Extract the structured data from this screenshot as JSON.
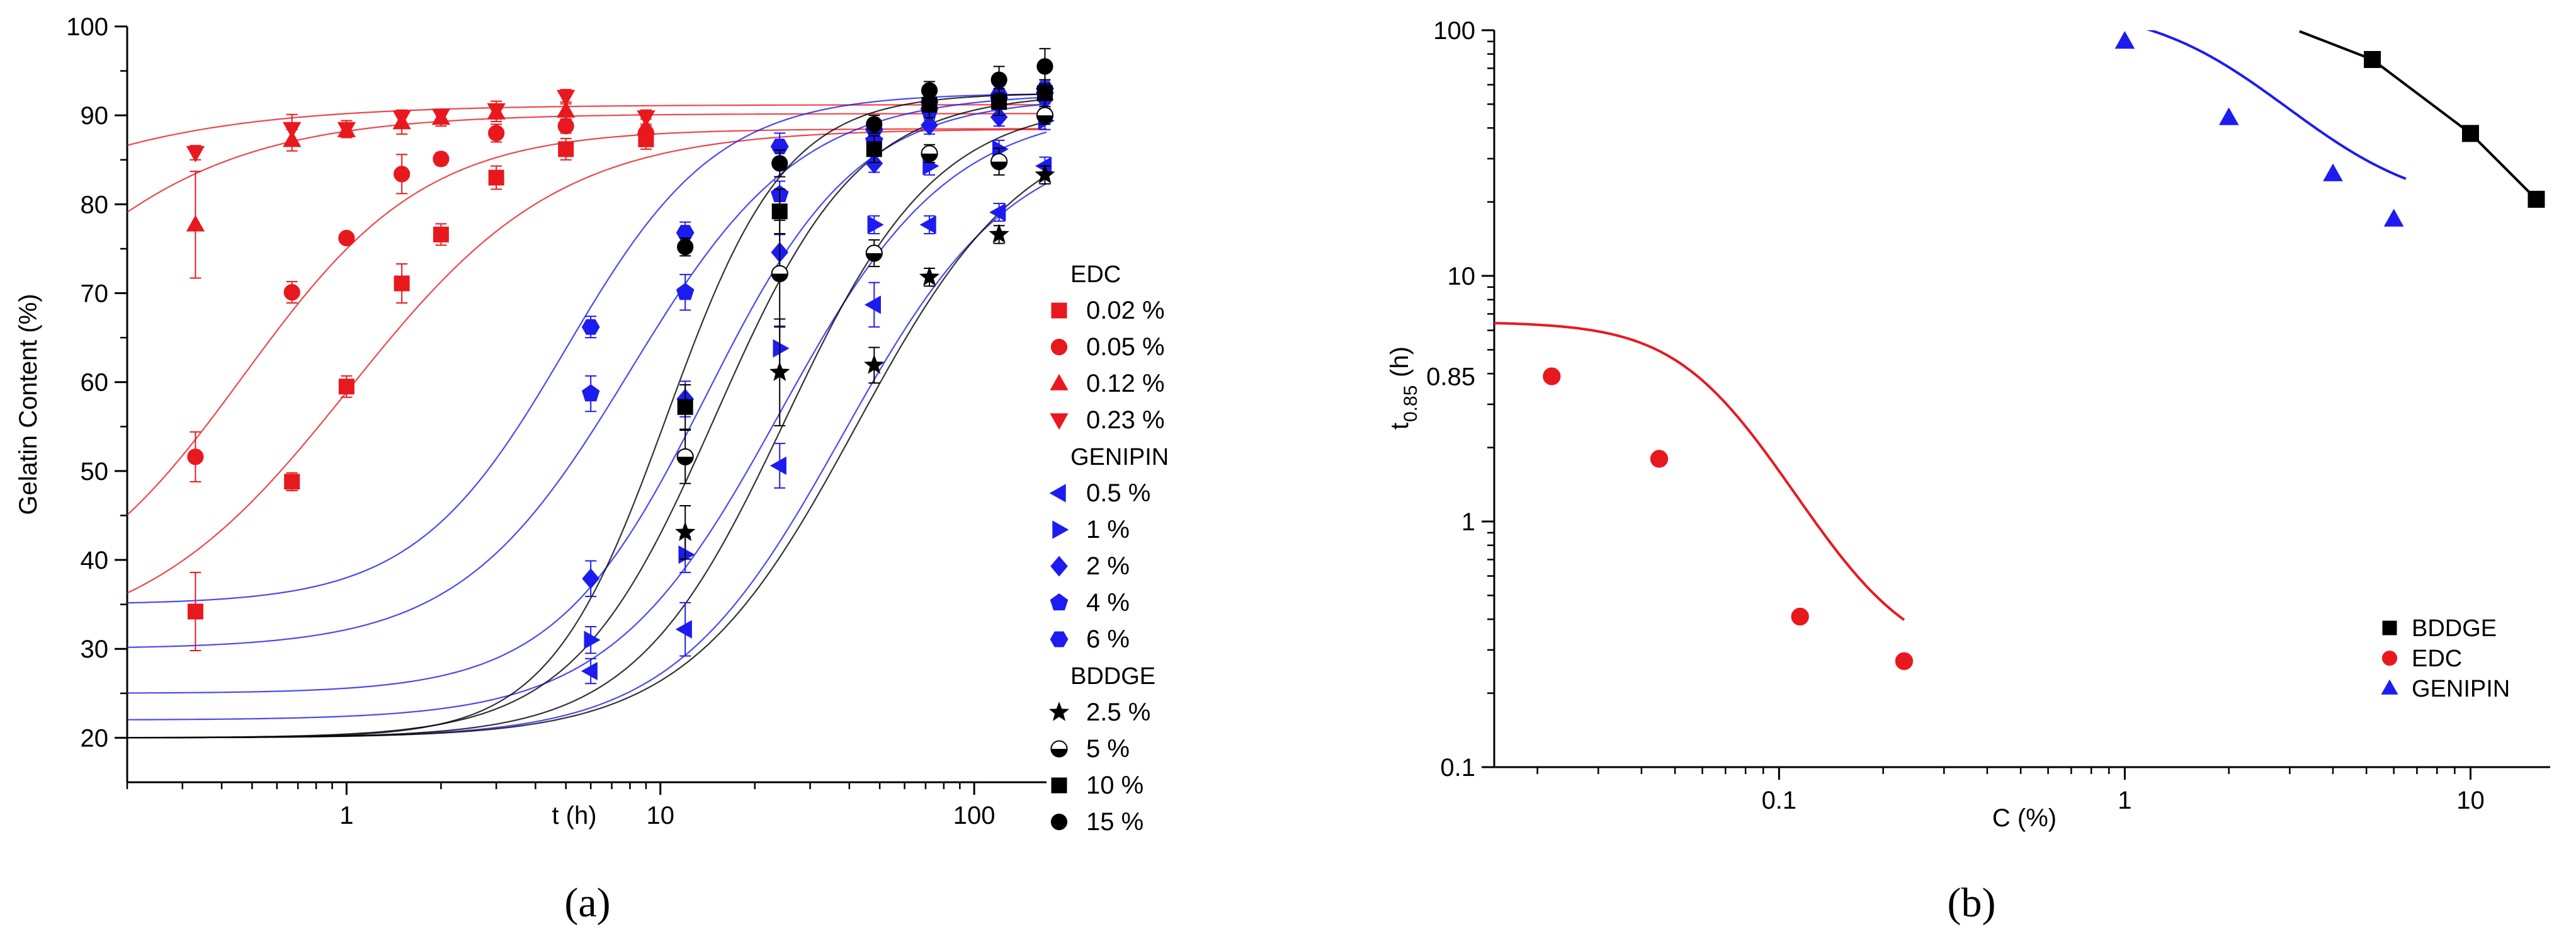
{
  "chart_data": [
    {
      "id": "a",
      "panel_label": "(a)",
      "type": "scatter",
      "xscale": "log",
      "xlabel": "t (h)",
      "ylabel": "Gelatin Content (%)",
      "xlim": [
        0.2,
        170
      ],
      "ylim": [
        15,
        100
      ],
      "xticks": [
        1,
        10,
        100
      ],
      "xtick_labels": [
        "1",
        "10",
        "100"
      ],
      "yticks": [
        20,
        30,
        40,
        50,
        60,
        70,
        80,
        90,
        100
      ],
      "ytick_labels": [
        "20",
        "30",
        "40",
        "50",
        "60",
        "70",
        "80",
        "90",
        "100"
      ],
      "legend_position": "right",
      "legend_groups": [
        {
          "title": "EDC",
          "entries": [
            "0.02 %",
            "0.05 %",
            "0.12 %",
            "0.23 %"
          ]
        },
        {
          "title": "GENIPIN",
          "entries": [
            "0.5 %",
            "1 %",
            "2 %",
            "4 %",
            "6 %"
          ]
        },
        {
          "title": "BDDGE",
          "entries": [
            "2.5 %",
            "5 %",
            "10 %",
            "15 %"
          ]
        }
      ],
      "series": [
        {
          "group": "EDC",
          "name": "0.02 %",
          "color": "#e8191e",
          "marker": "square",
          "x": [
            0.33,
            0.67,
            1,
            1.5,
            2,
            3,
            5,
            9
          ],
          "y": [
            34.2,
            48.8,
            59.5,
            71.1,
            76.6,
            83.0,
            86.2,
            87.3
          ],
          "err": [
            4.4,
            1.0,
            1.2,
            2.2,
            1.2,
            1.3,
            1.2,
            1.1
          ],
          "fit": {
            "min": 30,
            "max": 88.5,
            "t50": 1.02,
            "n": 1.3
          }
        },
        {
          "group": "EDC",
          "name": "0.05 %",
          "color": "#e8191e",
          "marker": "circle",
          "x": [
            0.33,
            0.67,
            1,
            1.5,
            2,
            3,
            5,
            9
          ],
          "y": [
            51.6,
            70.1,
            76.2,
            83.4,
            85.1,
            88.0,
            88.8,
            88.0
          ],
          "err": [
            2.8,
            1.2,
            0.5,
            2.2,
            0.7,
            1.0,
            0.8,
            0.8
          ],
          "fit": {
            "min": 33,
            "max": 88.5,
            "t50": 0.47,
            "n": 1.5
          }
        },
        {
          "group": "EDC",
          "name": "0.12 %",
          "color": "#e8191e",
          "marker": "triangle-up",
          "x": [
            0.33,
            0.67,
            1,
            1.5,
            2,
            3,
            5,
            9
          ],
          "y": [
            77.7,
            87.2,
            88.3,
            89.2,
            89.7,
            90.3,
            90.5,
            88.6
          ],
          "err": [
            6.0,
            1.2,
            0.8,
            1.3,
            0.9,
            1.0,
            1.0,
            1.0
          ],
          "fit": {
            "min": 40,
            "max": 90.2,
            "t50": 0.07,
            "n": 1.2
          }
        },
        {
          "group": "EDC",
          "name": "0.23 %",
          "color": "#e8191e",
          "marker": "triangle-down",
          "x": [
            0.33,
            0.67,
            1,
            1.5,
            2,
            3,
            5,
            9
          ],
          "y": [
            85.8,
            88.5,
            88.5,
            89.8,
            90.0,
            90.6,
            92.1,
            89.8
          ],
          "err": [
            0.8,
            1.6,
            0.9,
            0.8,
            0.7,
            1.0,
            0.8,
            0.8
          ],
          "fit": {
            "min": 50,
            "max": 91.2,
            "t50": 0.025,
            "n": 1.0
          }
        },
        {
          "group": "GENIPIN",
          "name": "0.5 %",
          "color": "#1c1cf0",
          "marker": "triangle-left",
          "x": [
            6,
            12,
            24,
            48,
            72,
            120,
            168
          ],
          "y": [
            27.5,
            32.2,
            50.6,
            68.7,
            77.7,
            79.1,
            84.3
          ],
          "err": [
            1.4,
            3.0,
            2.5,
            2.5,
            1.0,
            1.0,
            1.0
          ],
          "fit": {
            "min": 20,
            "max": 88,
            "t50": 38,
            "n": 1.6
          }
        },
        {
          "group": "GENIPIN",
          "name": "1 %",
          "color": "#1c1cf0",
          "marker": "triangle-right",
          "x": [
            6,
            12,
            24,
            48,
            72,
            120,
            168
          ],
          "y": [
            31.0,
            40.6,
            63.8,
            77.7,
            84.3,
            86.2,
            89.4
          ],
          "err": [
            1.5,
            2.0,
            2.5,
            1.0,
            1.0,
            1.0,
            1.0
          ],
          "fit": {
            "min": 22,
            "max": 91,
            "t50": 24,
            "n": 1.6
          }
        },
        {
          "group": "GENIPIN",
          "name": "2 %",
          "color": "#1c1cf0",
          "marker": "diamond",
          "x": [
            6,
            12,
            24,
            48,
            72,
            120,
            168
          ],
          "y": [
            37.9,
            58.1,
            74.6,
            84.6,
            88.9,
            89.8,
            91.8
          ],
          "err": [
            2.0,
            2.0,
            2.0,
            1.0,
            1.0,
            1.0,
            1.0
          ],
          "fit": {
            "min": 25,
            "max": 92,
            "t50": 14,
            "n": 1.8
          }
        },
        {
          "group": "GENIPIN",
          "name": "4 %",
          "color": "#1c1cf0",
          "marker": "pentagon",
          "x": [
            6,
            12,
            24,
            48,
            72,
            120,
            168
          ],
          "y": [
            58.7,
            70.1,
            81.1,
            87.1,
            90.5,
            91.7,
            92.3
          ],
          "err": [
            2.0,
            2.0,
            1.5,
            1.0,
            1.0,
            1.0,
            1.0
          ],
          "fit": {
            "min": 30,
            "max": 92.5,
            "t50": 8,
            "n": 1.6
          }
        },
        {
          "group": "GENIPIN",
          "name": "6 %",
          "color": "#1c1cf0",
          "marker": "hexagon",
          "x": [
            6,
            12,
            24,
            48,
            72,
            120,
            168
          ],
          "y": [
            66.2,
            76.8,
            86.5,
            88.4,
            91.5,
            92.3,
            93.0
          ],
          "err": [
            1.2,
            1.2,
            1.5,
            1.0,
            1.0,
            1.0,
            1.0
          ],
          "fit": {
            "min": 35,
            "max": 92.5,
            "t50": 5,
            "n": 1.8
          }
        },
        {
          "group": "BDDGE",
          "name": "2.5 %",
          "color": "#000000",
          "marker": "star",
          "x": [
            12,
            24,
            48,
            72,
            120,
            168
          ],
          "y": [
            43.1,
            61.1,
            61.9,
            71.8,
            76.6,
            83.3
          ],
          "err": [
            3.0,
            6.0,
            2.0,
            1.0,
            1.0,
            1.0
          ],
          "fit": {
            "min": 20,
            "max": 90,
            "t50": 42,
            "n": 1.6
          }
        },
        {
          "group": "BDDGE",
          "name": "5 %",
          "color": "#000000",
          "marker": "circle-half",
          "x": [
            12,
            24,
            48,
            72,
            120,
            168
          ],
          "y": [
            51.6,
            72.2,
            74.5,
            85.7,
            84.8,
            90.0
          ],
          "err": [
            3.0,
            6.0,
            1.5,
            1.0,
            1.5,
            1.0
          ],
          "fit": {
            "min": 20,
            "max": 91.5,
            "t50": 25,
            "n": 1.8
          }
        },
        {
          "group": "BDDGE",
          "name": "10 %",
          "color": "#000000",
          "marker": "square",
          "x": [
            12,
            24,
            48,
            72,
            120,
            168
          ],
          "y": [
            57.2,
            79.2,
            86.2,
            91.2,
            91.5,
            92.5
          ],
          "err": [
            2.5,
            2.5,
            1.5,
            1.5,
            1.5,
            1.5
          ],
          "fit": {
            "min": 20,
            "max": 92.5,
            "t50": 15,
            "n": 1.9
          }
        },
        {
          "group": "BDDGE",
          "name": "15 %",
          "color": "#000000",
          "marker": "circle",
          "x": [
            12,
            24,
            48,
            72,
            120,
            168
          ],
          "y": [
            75.2,
            84.6,
            89.0,
            92.8,
            94.0,
            95.5
          ],
          "err": [
            1.0,
            1.5,
            1.0,
            1.0,
            1.5,
            2.0
          ],
          "fit": {
            "min": 20,
            "max": 92.5,
            "t50": 10.5,
            "n": 2.3
          }
        }
      ]
    },
    {
      "id": "b",
      "panel_label": "(b)",
      "type": "scatter",
      "xscale": "log",
      "yscale": "log",
      "xlabel": "C (%)",
      "ylabel_main": "t",
      "ylabel_sub": "0.85",
      "ylabel_unit": " (h)",
      "xlim": [
        0.015,
        17
      ],
      "ylim": [
        0.1,
        100
      ],
      "xticks": [
        0.1,
        1,
        10
      ],
      "xtick_labels": [
        "0.1",
        "1",
        "10"
      ],
      "yticks": [
        0.1,
        1,
        10,
        100
      ],
      "ytick_labels": [
        "0.1",
        "1",
        "10",
        "100"
      ],
      "extra_ytick": {
        "value": 3.9,
        "label": "0.85"
      },
      "legend_position": "bottom-right",
      "series": [
        {
          "name": "BDDGE",
          "color": "#000000",
          "marker": "square",
          "x": [
            5.2,
            10,
            15.5
          ],
          "y": [
            76,
            38,
            20.5
          ],
          "fit_points": [
            [
              3.2,
              99
            ],
            [
              5.2,
              76
            ],
            [
              10,
              38
            ],
            [
              15.5,
              20.5
            ]
          ]
        },
        {
          "name": "EDC",
          "color": "#e8191e",
          "marker": "circle",
          "x": [
            0.022,
            0.045,
            0.115,
            0.23
          ],
          "y": [
            3.9,
            1.8,
            0.41,
            0.27
          ],
          "fit_sigmoid": {
            "lo": 0.26,
            "hi": 6.5,
            "c50": 0.065,
            "n": 3.0,
            "from": 0.015,
            "to": 0.23
          }
        },
        {
          "name": "GENIPIN",
          "color": "#1c1cf0",
          "marker": "triangle-up",
          "x": [
            1,
            2,
            4,
            6
          ],
          "y": [
            90,
            44,
            26,
            17
          ],
          "fit_sigmoid": {
            "lo": 18.5,
            "hi": 126,
            "c50": 1.95,
            "n": 2.3,
            "from": 0.82,
            "to": 6.5
          }
        }
      ]
    }
  ]
}
